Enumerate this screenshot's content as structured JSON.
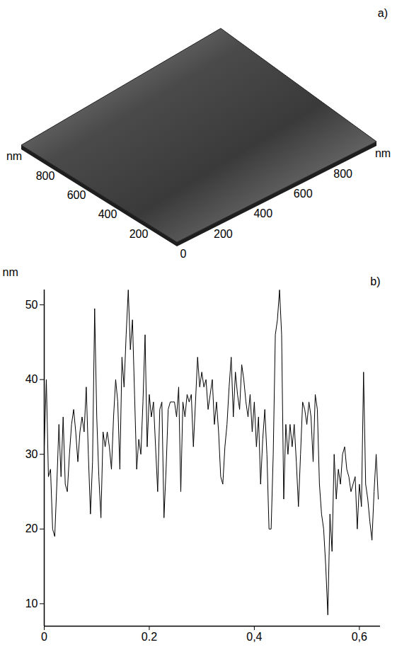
{
  "chart_data": [
    {
      "type": "surface",
      "title": "a)",
      "x_label": "nm",
      "y_label": "nm",
      "xlim": [
        0,
        1000
      ],
      "ylim": [
        0,
        1000
      ],
      "xticks": [
        0,
        200,
        400,
        600,
        800
      ],
      "yticks": [
        200,
        400,
        600,
        800
      ]
    },
    {
      "type": "line",
      "title": "b)",
      "y_label": "nm",
      "color": "#000000",
      "xlim": [
        0,
        0.64
      ],
      "ylim": [
        7,
        52
      ],
      "xticks": [
        0,
        0.2,
        {
          "value": 0.4,
          "label": "0,4"
        },
        {
          "value": 0.6,
          "label": "0,6"
        }
      ],
      "yticks": [
        10,
        20,
        30,
        40,
        50
      ],
      "x": [
        0,
        0.004,
        0.008,
        0.012,
        0.016,
        0.02,
        0.024,
        0.028,
        0.032,
        0.036,
        0.04,
        0.044,
        0.048,
        0.052,
        0.056,
        0.06,
        0.064,
        0.068,
        0.072,
        0.076,
        0.08,
        0.084,
        0.088,
        0.092,
        0.096,
        0.1,
        0.104,
        0.108,
        0.112,
        0.116,
        0.12,
        0.124,
        0.128,
        0.132,
        0.136,
        0.14,
        0.144,
        0.148,
        0.152,
        0.156,
        0.16,
        0.164,
        0.168,
        0.172,
        0.176,
        0.18,
        0.184,
        0.188,
        0.192,
        0.196,
        0.2,
        0.204,
        0.208,
        0.212,
        0.216,
        0.22,
        0.224,
        0.228,
        0.232,
        0.236,
        0.24,
        0.244,
        0.248,
        0.252,
        0.256,
        0.26,
        0.264,
        0.268,
        0.272,
        0.276,
        0.28,
        0.284,
        0.288,
        0.292,
        0.296,
        0.3,
        0.304,
        0.308,
        0.312,
        0.316,
        0.32,
        0.324,
        0.328,
        0.332,
        0.336,
        0.34,
        0.344,
        0.348,
        0.352,
        0.356,
        0.36,
        0.364,
        0.368,
        0.372,
        0.376,
        0.38,
        0.384,
        0.388,
        0.392,
        0.396,
        0.4,
        0.404,
        0.408,
        0.412,
        0.416,
        0.42,
        0.424,
        0.428,
        0.432,
        0.436,
        0.44,
        0.444,
        0.448,
        0.452,
        0.456,
        0.46,
        0.464,
        0.468,
        0.472,
        0.476,
        0.48,
        0.484,
        0.488,
        0.492,
        0.496,
        0.5,
        0.504,
        0.508,
        0.512,
        0.516,
        0.52,
        0.524,
        0.528,
        0.532,
        0.536,
        0.54,
        0.544,
        0.548,
        0.552,
        0.556,
        0.56,
        0.564,
        0.568,
        0.572,
        0.576,
        0.58,
        0.584,
        0.588,
        0.592,
        0.596,
        0.6,
        0.604,
        0.608,
        0.612,
        0.616,
        0.62,
        0.624,
        0.628,
        0.632,
        0.636
      ],
      "values": [
        31,
        40,
        27,
        28,
        20,
        19,
        26,
        34,
        27,
        35,
        26,
        25,
        30,
        34,
        36,
        33,
        29,
        33,
        35,
        33,
        39,
        30,
        22,
        29,
        49.5,
        35,
        27,
        21.5,
        33,
        31,
        33,
        31,
        28,
        35,
        40,
        37,
        28,
        43,
        39,
        46,
        52,
        44,
        48,
        38,
        28,
        32,
        30,
        37,
        46,
        31,
        38,
        35,
        37,
        31,
        25,
        36,
        37,
        21.5,
        28,
        36,
        37,
        37,
        37,
        35,
        39,
        25,
        37,
        35,
        38,
        37,
        38,
        31,
        37,
        43,
        39,
        41,
        39,
        40,
        36,
        38,
        40,
        34,
        37,
        33,
        27,
        26,
        31,
        34,
        39,
        43,
        35,
        41,
        38,
        36,
        42,
        40,
        37,
        35,
        38,
        33,
        37,
        31,
        35,
        26,
        32,
        36,
        30,
        20,
        20,
        30,
        46,
        48,
        52,
        46,
        24,
        34,
        30,
        34,
        31,
        34,
        29,
        23,
        30,
        37,
        36,
        34,
        37,
        35,
        29,
        38,
        36,
        26,
        22,
        20,
        15,
        8.5,
        22,
        17,
        30,
        24,
        28,
        26,
        30,
        31,
        28,
        27,
        25,
        26,
        27,
        20,
        26,
        23,
        41,
        26,
        24,
        21,
        18.5,
        25,
        30,
        24
      ]
    }
  ]
}
